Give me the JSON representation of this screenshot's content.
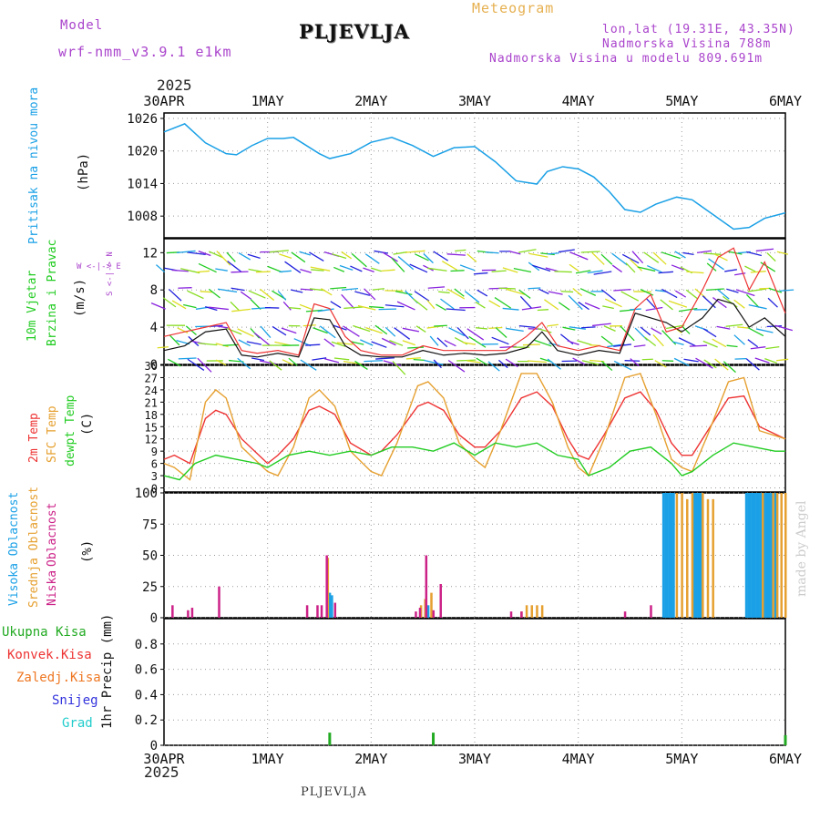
{
  "header": {
    "model_label": "Model",
    "model_name": "wrf-nmm_v3.9.1 e1km",
    "title": "PLJEVLJA",
    "subtitle": "Meteogram",
    "lonlat": "lon,lat (19.31E, 43.35N)",
    "elevation": "Nadmorska Visina 788m",
    "model_elevation": "Nadmorska Visina u modelu 809.691m",
    "year": "2025",
    "footer_title": "PLJEVLJA",
    "credit": "made by Angel"
  },
  "time_axis": {
    "labels": [
      "30APR",
      "1MAY",
      "2MAY",
      "3MAY",
      "4MAY",
      "5MAY",
      "6MAY"
    ],
    "days": [
      0,
      1,
      2,
      3,
      4,
      5,
      6
    ]
  },
  "panel_labels": {
    "pressure": {
      "name": "Pritisak na nivou mora",
      "unit": "(hPa)"
    },
    "wind": {
      "name1": "10m Vjetar",
      "name2": "Brzina i Pravac",
      "unit": "(m/s)",
      "legend": "W <-|-> E",
      "legend_v": "S <-|-> N"
    },
    "temp": {
      "name1": "2m Temp",
      "name2": "SFC Temp",
      "name3": "dewpt Temp",
      "unit": "(C)"
    },
    "cloud": {
      "name1": "Visoka Oblacnost",
      "name2": "Srednja Oblacnost",
      "name3": "Niska",
      "name4": "Oblacnost",
      "unit": "(%)"
    },
    "precip": {
      "unit": "1hr Precip (mm)",
      "legend": [
        "Ukupna Kisa",
        "Konvek.Kisa",
        "Zaledj.Kisa",
        "Snijeg",
        "Grad"
      ]
    }
  },
  "colors": {
    "pressure": "#1aa0e6",
    "temp2m": "#ee3333",
    "sfc": "#e6a030",
    "dewpt": "#22cc22",
    "high_cloud": "#1aa0e6",
    "mid_cloud": "#e6a030",
    "low_cloud": "#cc2288",
    "precip_total": "#22aa22",
    "precip_conv": "#ee3333",
    "precip_frz": "#ee7722",
    "precip_snow": "#3333dd",
    "precip_hail": "#22cccc",
    "model": "#aa44cc",
    "title_meteo": "#e6b050"
  },
  "chart_data": [
    {
      "type": "line",
      "name": "pressure",
      "ylim": [
        1004,
        1027
      ],
      "yticks": [
        1008,
        1014,
        1020,
        1026
      ],
      "grid": true,
      "x": [
        0,
        0.2,
        0.4,
        0.6,
        0.7,
        0.85,
        1.0,
        1.15,
        1.25,
        1.5,
        1.6,
        1.8,
        2.0,
        2.2,
        2.4,
        2.6,
        2.8,
        3.0,
        3.2,
        3.4,
        3.6,
        3.7,
        3.85,
        4.0,
        4.15,
        4.3,
        4.45,
        4.6,
        4.75,
        4.95,
        5.1,
        5.3,
        5.5,
        5.65,
        5.8,
        6.0
      ],
      "y": [
        1023.5,
        1025,
        1021.5,
        1019.5,
        1019.3,
        1021,
        1022.3,
        1022.3,
        1022.5,
        1019.5,
        1018.6,
        1019.5,
        1021.6,
        1022.5,
        1021,
        1019,
        1020.6,
        1020.8,
        1018,
        1014.5,
        1013.9,
        1016.2,
        1017.1,
        1016.7,
        1015.2,
        1012.5,
        1009.2,
        1008.7,
        1010.2,
        1011.5,
        1011,
        1008.3,
        1005.6,
        1005.9,
        1007.6,
        1008.6
      ],
      "color": "#1aa0e6"
    },
    {
      "type": "line",
      "name": "wind",
      "ylim": [
        0,
        13.5
      ],
      "yticks": [
        0,
        4,
        8,
        12
      ],
      "grid": true,
      "series": [
        {
          "x": [
            0,
            0.2,
            0.4,
            0.6,
            0.75,
            0.9,
            1.1,
            1.3,
            1.45,
            1.6,
            1.75,
            1.9,
            2.1,
            2.3,
            2.5,
            2.7,
            2.9,
            3.1,
            3.3,
            3.5,
            3.65,
            3.8,
            4.0,
            4.2,
            4.4,
            4.55,
            4.7,
            4.85,
            5.0,
            5.2,
            5.35,
            5.5,
            5.65,
            5.8,
            6.0
          ],
          "y": [
            1.5,
            2.0,
            3.5,
            3.8,
            1.0,
            0.8,
            1.2,
            0.8,
            5.0,
            4.8,
            2.0,
            1.0,
            0.8,
            0.8,
            1.5,
            1.0,
            1.2,
            1.0,
            1.2,
            1.8,
            3.5,
            1.5,
            1.0,
            1.5,
            1.2,
            5.5,
            5.0,
            4.5,
            3.5,
            5.0,
            7.0,
            6.5,
            4.0,
            5.0,
            3.0
          ],
          "color": "#111111"
        },
        {
          "x": [
            0,
            0.2,
            0.4,
            0.6,
            0.75,
            0.9,
            1.1,
            1.3,
            1.45,
            1.6,
            1.75,
            1.9,
            2.1,
            2.3,
            2.5,
            2.7,
            2.9,
            3.1,
            3.3,
            3.5,
            3.65,
            3.8,
            4.0,
            4.2,
            4.4,
            4.55,
            4.7,
            4.85,
            5.0,
            5.2,
            5.35,
            5.5,
            5.65,
            5.8,
            6.0
          ],
          "y": [
            3.0,
            3.5,
            4.0,
            4.5,
            1.5,
            1.2,
            1.5,
            1.0,
            6.5,
            6.0,
            3.0,
            1.5,
            1.0,
            1.0,
            2.0,
            1.5,
            1.5,
            1.5,
            1.5,
            3.0,
            4.5,
            2.0,
            1.5,
            2.0,
            1.5,
            6.0,
            7.5,
            3.5,
            4.0,
            8.0,
            11.5,
            12.5,
            8.0,
            11.0,
            5.5
          ],
          "color": "#ee3333"
        }
      ]
    },
    {
      "type": "line",
      "name": "temperature",
      "ylim": [
        -1,
        30
      ],
      "yticks": [
        0,
        3,
        6,
        9,
        12,
        15,
        18,
        21,
        24,
        27,
        30
      ],
      "grid": true,
      "series": [
        {
          "name": "2m Temp",
          "color": "#ee3333",
          "x": [
            0,
            0.1,
            0.25,
            0.4,
            0.5,
            0.6,
            0.75,
            1.0,
            1.1,
            1.25,
            1.4,
            1.5,
            1.65,
            1.8,
            2.0,
            2.1,
            2.25,
            2.45,
            2.55,
            2.7,
            2.85,
            3.0,
            3.1,
            3.25,
            3.45,
            3.6,
            3.75,
            3.9,
            4.0,
            4.1,
            4.25,
            4.45,
            4.6,
            4.75,
            4.9,
            5.0,
            5.1,
            5.25,
            5.45,
            5.6,
            5.75,
            6.0
          ],
          "y": [
            7,
            8,
            6,
            17,
            19,
            18,
            12,
            6,
            8,
            12,
            19,
            20,
            18,
            11,
            8,
            9,
            13,
            20,
            21,
            19,
            13,
            10,
            10,
            14,
            22,
            23.5,
            20,
            12,
            8,
            7,
            13,
            22,
            23.5,
            19,
            11,
            8,
            8,
            14,
            22,
            22.5,
            15,
            12
          ]
        },
        {
          "name": "SFC Temp",
          "color": "#e6a030",
          "x": [
            0,
            0.1,
            0.25,
            0.4,
            0.5,
            0.6,
            0.75,
            1.0,
            1.1,
            1.25,
            1.4,
            1.5,
            1.65,
            1.8,
            2.0,
            2.1,
            2.25,
            2.45,
            2.55,
            2.7,
            2.85,
            3.0,
            3.1,
            3.25,
            3.45,
            3.6,
            3.75,
            3.9,
            4.0,
            4.1,
            4.25,
            4.45,
            4.6,
            4.75,
            4.9,
            5.0,
            5.1,
            5.25,
            5.45,
            5.6,
            5.75,
            6.0
          ],
          "y": [
            6,
            5,
            2,
            21,
            24,
            22,
            10,
            4,
            3,
            10,
            22,
            24,
            20,
            9,
            4,
            3,
            11,
            25,
            26,
            22,
            11,
            7,
            5,
            14,
            28,
            28,
            21,
            10,
            5,
            3,
            12,
            27,
            28,
            18,
            7,
            5,
            4,
            13,
            26,
            27,
            14,
            12
          ]
        },
        {
          "name": "dewpt Temp",
          "color": "#22cc22",
          "x": [
            0,
            0.15,
            0.3,
            0.5,
            0.7,
            0.9,
            1.0,
            1.2,
            1.4,
            1.6,
            1.8,
            2.0,
            2.2,
            2.4,
            2.6,
            2.8,
            3.0,
            3.2,
            3.4,
            3.6,
            3.8,
            4.0,
            4.1,
            4.3,
            4.5,
            4.7,
            4.9,
            5.0,
            5.1,
            5.3,
            5.5,
            5.7,
            5.9,
            6.0
          ],
          "y": [
            3,
            2,
            6,
            8,
            7,
            6,
            5,
            8,
            9,
            8,
            9,
            8,
            10,
            10,
            9,
            11,
            8,
            11,
            10,
            11,
            8,
            7,
            3,
            5,
            9,
            10,
            6,
            3,
            4,
            8,
            11,
            10,
            9,
            9
          ]
        }
      ]
    },
    {
      "type": "bar",
      "name": "cloud_cover",
      "ylim": [
        0,
        100
      ],
      "yticks": [
        0,
        25,
        50,
        75,
        100
      ],
      "grid": true,
      "series": [
        {
          "name": "Visoka Oblacnost",
          "color": "#1aa0e6",
          "x": [
            1.6,
            1.62,
            2.55,
            4.82,
            4.84,
            4.86,
            4.88,
            4.9,
            4.92,
            5.12,
            5.14,
            5.16,
            5.18,
            5.62,
            5.64,
            5.66,
            5.68,
            5.7,
            5.72,
            5.74,
            5.76,
            5.8,
            5.82,
            5.84,
            5.86,
            5.9
          ],
          "y": [
            20,
            18,
            10,
            100,
            100,
            100,
            100,
            100,
            100,
            100,
            100,
            100,
            100,
            100,
            100,
            100,
            100,
            100,
            100,
            100,
            100,
            100,
            100,
            100,
            100,
            100
          ]
        },
        {
          "name": "Srednja Oblacnost",
          "color": "#e6a030",
          "x": [
            1.58,
            2.48,
            2.52,
            2.58,
            3.45,
            3.5,
            3.55,
            3.6,
            3.65,
            4.95,
            5.0,
            5.05,
            5.1,
            5.2,
            5.25,
            5.3,
            5.78,
            5.88,
            5.92,
            5.96,
            6.0
          ],
          "y": [
            48,
            10,
            15,
            20,
            5,
            10,
            10,
            10,
            10,
            100,
            100,
            95,
            100,
            100,
            95,
            95,
            100,
            100,
            100,
            100,
            100
          ]
        },
        {
          "name": "Niska Oblacnost",
          "color": "#cc2288",
          "x": [
            0.08,
            0.23,
            0.27,
            0.53,
            1.38,
            1.48,
            1.52,
            1.57,
            1.65,
            2.43,
            2.47,
            2.53,
            2.6,
            2.67,
            3.35,
            3.45,
            4.45,
            4.7
          ],
          "y": [
            10,
            6,
            8,
            25,
            10,
            10,
            10,
            50,
            12,
            5,
            8,
            50,
            6,
            27,
            5,
            5,
            5,
            10
          ]
        }
      ]
    },
    {
      "type": "bar",
      "name": "precip_1hr",
      "ylim": [
        0,
        1.0
      ],
      "yticks": [
        0,
        0.2,
        0.4,
        0.6,
        0.8
      ],
      "grid": true,
      "series": [
        {
          "name": "Ukupna Kisa",
          "color": "#22aa22",
          "x": [
            1.6,
            2.6,
            6.0
          ],
          "y": [
            0.1,
            0.1,
            0.08
          ]
        }
      ]
    }
  ]
}
